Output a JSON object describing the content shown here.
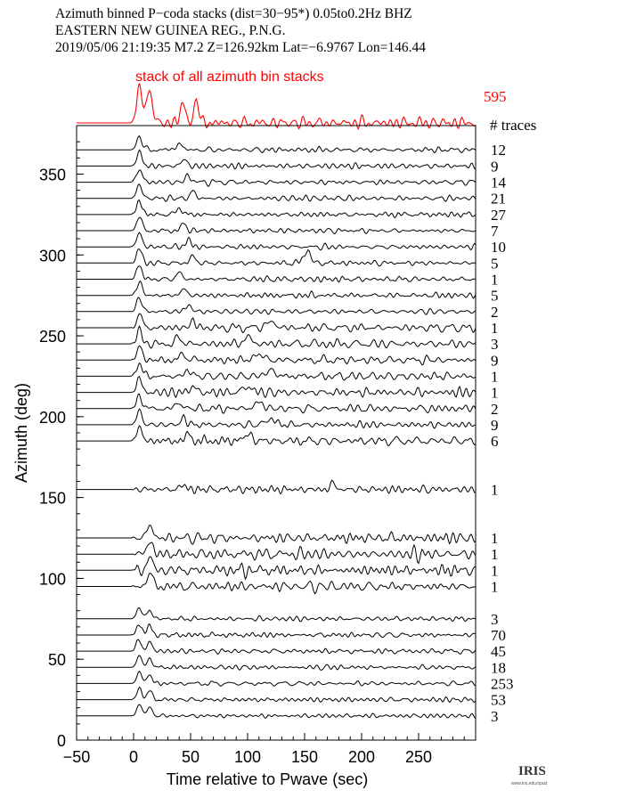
{
  "header": {
    "line1": "Azimuth binned P−coda stacks (dist=30−95*)  0.05to0.2Hz  BHZ",
    "line2": "EASTERN NEW GUINEA REG., P.N.G.",
    "line3": "2019/05/06  21:19:35  M7.2  Z=126.92km Lat=−6.9767 Lon=146.44"
  },
  "colors": {
    "stack": "#ff0000",
    "traces": "#000000",
    "text": "#000000"
  },
  "logo": {
    "text": "IRIS",
    "subtext": "www.iris.edu/spud"
  },
  "chart_data": {
    "type": "line",
    "title": "",
    "xlabel": "Time relative to Pwave (sec)",
    "ylabel": "Azimuth (deg)",
    "xlim": [
      -50,
      300
    ],
    "ylim": [
      0,
      380
    ],
    "xticks": [
      -50,
      0,
      50,
      100,
      150,
      200,
      250
    ],
    "yticks": [
      0,
      50,
      100,
      150,
      200,
      250,
      300,
      350
    ],
    "grid": false,
    "stack": {
      "label": "stack of all azimuth bin stacks",
      "count": "595",
      "peaks": [
        {
          "t": 5,
          "a": 1.0
        },
        {
          "t": 14,
          "a": 0.95
        },
        {
          "t": 43,
          "a": 0.5
        },
        {
          "t": 55,
          "a": 0.55
        }
      ]
    },
    "count_header": "# traces",
    "series": [
      {
        "azimuth": 365,
        "count": "12"
      },
      {
        "azimuth": 355,
        "count": "9"
      },
      {
        "azimuth": 345,
        "count": "14"
      },
      {
        "azimuth": 335,
        "count": "21"
      },
      {
        "azimuth": 325,
        "count": "27"
      },
      {
        "azimuth": 315,
        "count": "7"
      },
      {
        "azimuth": 305,
        "count": "10"
      },
      {
        "azimuth": 295,
        "count": "5"
      },
      {
        "azimuth": 285,
        "count": "1"
      },
      {
        "azimuth": 275,
        "count": "5"
      },
      {
        "azimuth": 265,
        "count": "2"
      },
      {
        "azimuth": 255,
        "count": "1"
      },
      {
        "azimuth": 245,
        "count": "3"
      },
      {
        "azimuth": 235,
        "count": "9"
      },
      {
        "azimuth": 225,
        "count": "1"
      },
      {
        "azimuth": 215,
        "count": "1"
      },
      {
        "azimuth": 205,
        "count": "2"
      },
      {
        "azimuth": 195,
        "count": "9"
      },
      {
        "azimuth": 185,
        "count": "6"
      },
      {
        "azimuth": 155,
        "count": "1"
      },
      {
        "azimuth": 125,
        "count": "1"
      },
      {
        "azimuth": 115,
        "count": "1"
      },
      {
        "azimuth": 105,
        "count": "1"
      },
      {
        "azimuth": 95,
        "count": "1"
      },
      {
        "azimuth": 75,
        "count": "3"
      },
      {
        "azimuth": 65,
        "count": "70"
      },
      {
        "azimuth": 55,
        "count": "45"
      },
      {
        "azimuth": 45,
        "count": "18"
      },
      {
        "azimuth": 35,
        "count": "253"
      },
      {
        "azimuth": 25,
        "count": "53"
      },
      {
        "azimuth": 15,
        "count": "3"
      }
    ]
  }
}
